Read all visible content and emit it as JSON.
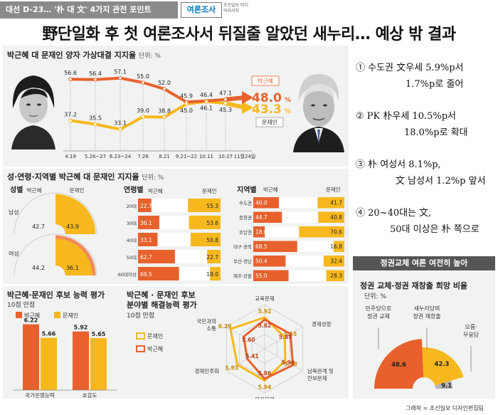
{
  "topbar": {
    "label": "대선 D-23… '朴 대 文' 4가지 관전 포인트",
    "tag": "여론조사",
    "tag_sub": "조선일보 미디어리서치"
  },
  "headline": "野단일화 후 첫 여론조사서 뒤질줄 알았던 새누리… 예상 밖 결과",
  "notes": [
    {
      "line1": "① 수도권 文우세 5.9%p서",
      "line2": "1.7%p로 줄어"
    },
    {
      "line1": "② PK 朴우세 10.5%p서",
      "line2": "18.0%p로 확대"
    },
    {
      "line1": "③ 朴 여성서 8.1%p,",
      "line2": "文 남성서 1.2%p 앞서"
    },
    {
      "line1": "④ 20~40대는 文,",
      "line2": "50대 이상은 朴 쪽으로"
    }
  ],
  "colors": {
    "park": "#e8612c",
    "moon": "#f7b81e",
    "panel": "#f1f2f2"
  },
  "credit": "그래픽 = 조선일보 디자인편집팀",
  "chart_data": [
    {
      "type": "line",
      "title": "박근혜 대 문재인 양자 가상대결 지지율",
      "unit": "단위: %",
      "x": [
        "4.19",
        "5.26~27",
        "6.23~24",
        "7.26",
        "8.21",
        "9.21~22",
        "10.11",
        "10.27",
        "11월24일"
      ],
      "series": [
        {
          "name": "박근혜",
          "values": [
            56.6,
            56.4,
            57.1,
            55.0,
            52.0,
            45.9,
            46.4,
            47.1,
            48.0
          ]
        },
        {
          "name": "문재인",
          "values": [
            37.2,
            35.5,
            33.1,
            39.0,
            38.8,
            45.0,
            46.1,
            45.3,
            43.3
          ]
        }
      ],
      "final_labels": {
        "park": "48.0",
        "moon": "43.3",
        "suffix": "%"
      },
      "ylim": [
        25,
        65
      ]
    },
    {
      "type": "bar",
      "title": "성·연령·지역별 박근혜 대 문재인 지지율",
      "unit": "단위: %",
      "gender": {
        "heading": "성별",
        "rows": [
          {
            "label": "남성",
            "park": 42.7,
            "moon": 43.9
          },
          {
            "label": "여성",
            "park": 44.2,
            "moon": 36.1
          }
        ],
        "park_label": "박근혜",
        "moon_label": "문재인"
      },
      "age": {
        "heading": "연령별",
        "rows": [
          {
            "label": "20대",
            "park": 22.7,
            "moon": 55.3
          },
          {
            "label": "30대",
            "park": 36.1,
            "moon": 53.6
          },
          {
            "label": "40대",
            "park": 33.1,
            "moon": 50.8
          },
          {
            "label": "50대",
            "park": 62.7,
            "moon": 22.7
          },
          {
            "label": "60대이상",
            "park": 69.5,
            "moon": 18.0
          }
        ],
        "park_label": "박근혜",
        "moon_label": "문재인"
      },
      "region": {
        "heading": "지역별",
        "rows": [
          {
            "label": "수도권",
            "park": 40.0,
            "moon": 41.7
          },
          {
            "label": "충청권",
            "park": 44.7,
            "moon": 40.8
          },
          {
            "label": "호남권",
            "park": 18.0,
            "moon": 70.6
          },
          {
            "label": "대구·경북",
            "park": 68.5,
            "moon": 16.8
          },
          {
            "label": "부산·경남",
            "park": 50.4,
            "moon": 32.4
          },
          {
            "label": "제주·강원",
            "park": 55.0,
            "moon": 28.3
          }
        ],
        "park_label": "박근혜",
        "moon_label": "문재인"
      }
    },
    {
      "type": "bar",
      "title": "박근혜·문재인 후보 능력 평가",
      "unit": "10점 만점",
      "categories": [
        "국가운영능력",
        "호감도"
      ],
      "series": [
        {
          "name": "박근혜",
          "values": [
            6.22,
            5.92
          ]
        },
        {
          "name": "문재인",
          "values": [
            5.66,
            5.65
          ]
        }
      ]
    },
    {
      "type": "radar",
      "title_line1": "박근혜 · 문재인 후보",
      "title_line2": "분야별 해결능력 평가",
      "unit": "10점 만점",
      "axes": [
        "교육문제",
        "경제성장",
        "남북관계 및 안보문제",
        "복지문제",
        "경제민주화",
        "국민과의 소통"
      ],
      "series": [
        {
          "name": "문재인",
          "values": [
            5.92,
            5.55,
            5.58,
            5.94,
            5.93,
            6.29
          ]
        },
        {
          "name": "박근혜",
          "values": [
            5.82,
            5.85,
            5.98,
            5.86,
            5.41,
            5.6
          ]
        }
      ]
    },
    {
      "type": "pie",
      "header": "정권교체 여론 여전히 높아",
      "title": "정권 교체·정권 재창출 희망 비율",
      "unit": "단위: %",
      "slices": [
        {
          "label": "민주당으로 정권 교체",
          "value": 48.6
        },
        {
          "label": "새누리당의 정권 재창출",
          "value": 42.3
        },
        {
          "label": "모름·무응답",
          "value": 9.1
        }
      ]
    }
  ]
}
